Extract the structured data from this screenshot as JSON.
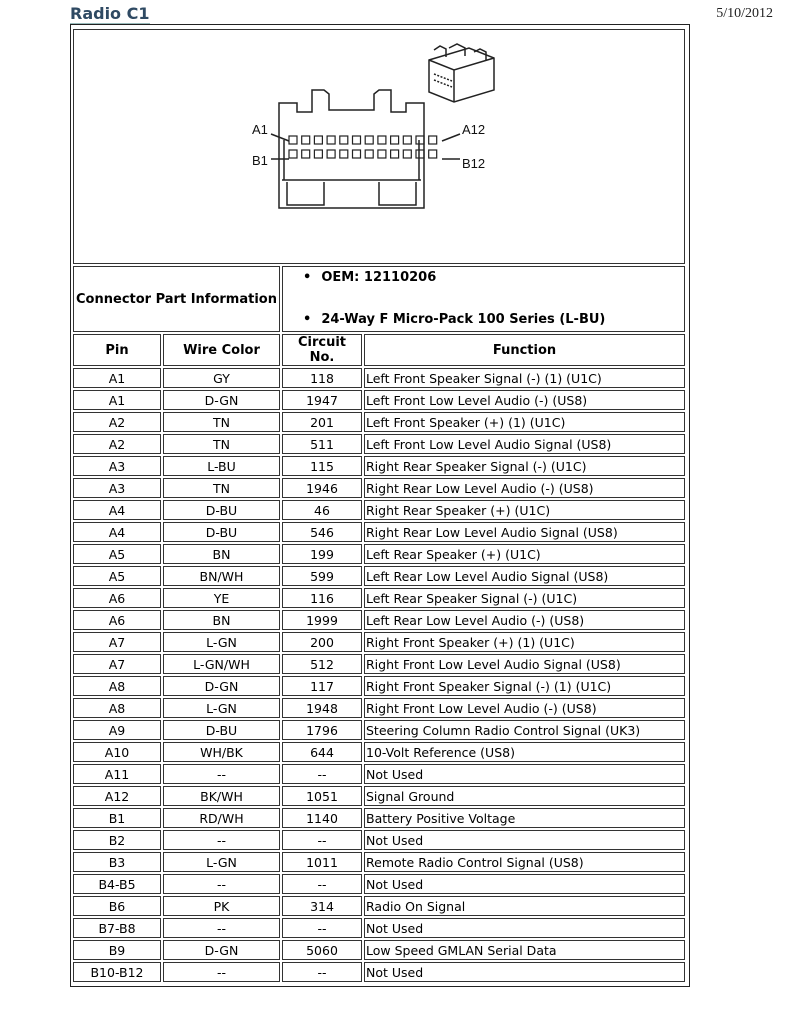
{
  "header": {
    "title": "Radio C1",
    "date": "5/10/2012"
  },
  "diagram": {
    "labels": {
      "a1": "A1",
      "a12": "A12",
      "b1": "B1",
      "b12": "B12"
    }
  },
  "connector_info": {
    "label": "Connector Part Information",
    "items": [
      "OEM: 12110206",
      "24-Way F Micro-Pack 100 Series (L-BU)"
    ]
  },
  "columns": [
    "Pin",
    "Wire Color",
    "Circuit No.",
    "Function"
  ],
  "rows": [
    [
      "A1",
      "GY",
      "118",
      "Left Front Speaker Signal (-) (1) (U1C)"
    ],
    [
      "A1",
      "D-GN",
      "1947",
      "Left Front Low Level Audio (-) (US8)"
    ],
    [
      "A2",
      "TN",
      "201",
      "Left Front Speaker (+) (1) (U1C)"
    ],
    [
      "A2",
      "TN",
      "511",
      "Left Front Low Level Audio Signal (US8)"
    ],
    [
      "A3",
      "L-BU",
      "115",
      "Right Rear Speaker Signal (-) (U1C)"
    ],
    [
      "A3",
      "TN",
      "1946",
      "Right Rear Low Level Audio (-) (US8)"
    ],
    [
      "A4",
      "D-BU",
      "46",
      "Right Rear Speaker (+) (U1C)"
    ],
    [
      "A4",
      "D-BU",
      "546",
      "Right Rear Low Level Audio Signal (US8)"
    ],
    [
      "A5",
      "BN",
      "199",
      "Left Rear Speaker (+) (U1C)"
    ],
    [
      "A5",
      "BN/WH",
      "599",
      "Left Rear Low Level Audio Signal (US8)"
    ],
    [
      "A6",
      "YE",
      "116",
      "Left Rear Speaker Signal (-) (U1C)"
    ],
    [
      "A6",
      "BN",
      "1999",
      "Left Rear Low Level Audio (-) (US8)"
    ],
    [
      "A7",
      "L-GN",
      "200",
      "Right Front Speaker (+) (1) (U1C)"
    ],
    [
      "A7",
      "L-GN/WH",
      "512",
      "Right Front Low Level Audio Signal (US8)"
    ],
    [
      "A8",
      "D-GN",
      "117",
      "Right Front Speaker Signal (-) (1) (U1C)"
    ],
    [
      "A8",
      "L-GN",
      "1948",
      "Right Front Low Level Audio (-) (US8)"
    ],
    [
      "A9",
      "D-BU",
      "1796",
      "Steering Column Radio Control Signal (UK3)"
    ],
    [
      "A10",
      "WH/BK",
      "644",
      "10-Volt Reference (US8)"
    ],
    [
      "A11",
      "--",
      "--",
      "Not Used"
    ],
    [
      "A12",
      "BK/WH",
      "1051",
      "Signal Ground"
    ],
    [
      "B1",
      "RD/WH",
      "1140",
      "Battery Positive Voltage"
    ],
    [
      "B2",
      "--",
      "--",
      "Not Used"
    ],
    [
      "B3",
      "L-GN",
      "1011",
      "Remote Radio Control Signal (US8)"
    ],
    [
      "B4-B5",
      "--",
      "--",
      "Not Used"
    ],
    [
      "B6",
      "PK",
      "314",
      "Radio On Signal"
    ],
    [
      "B7-B8",
      "--",
      "--",
      "Not Used"
    ],
    [
      "B9",
      "D-GN",
      "5060",
      "Low Speed GMLAN Serial Data"
    ],
    [
      "B10-B12",
      "--",
      "--",
      "Not Used"
    ]
  ]
}
